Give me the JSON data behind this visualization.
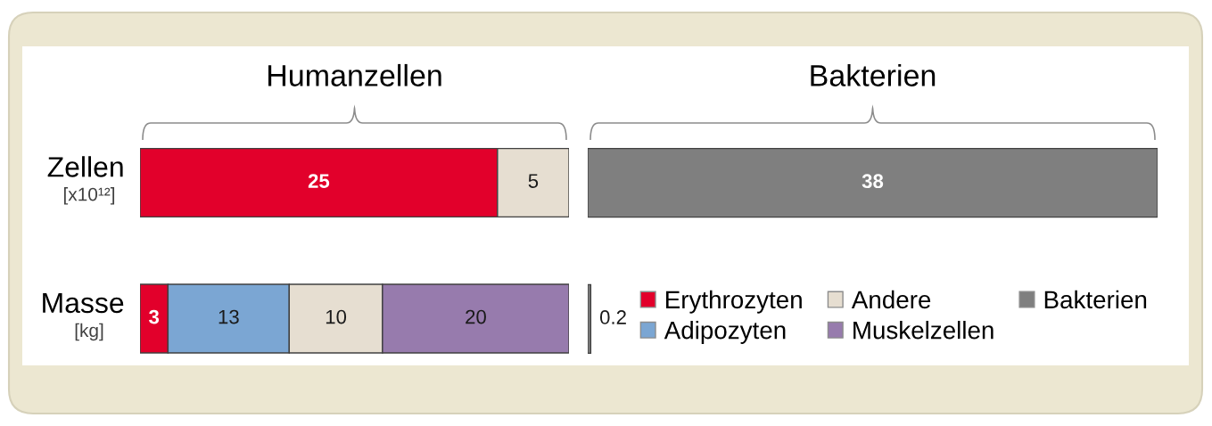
{
  "chart_data": [
    {
      "type": "bar",
      "orientation": "horizontal",
      "stacked": true,
      "title": "Humanzellen",
      "categories": [
        "Zellen"
      ],
      "xlabel": "[x10¹²]",
      "xlim": [
        0,
        30
      ],
      "tick_labels": "y",
      "data_labels": true,
      "legend": "bottom right",
      "series": [
        {
          "name": "Erythrozyten",
          "color": "#e2002b",
          "values": [
            25
          ]
        },
        {
          "name": "Andere",
          "color": "#e6ded1",
          "values": [
            5
          ]
        }
      ]
    },
    {
      "type": "bar",
      "orientation": "horizontal",
      "stacked": true,
      "title": "Bakterien",
      "categories": [
        null,
        null
      ],
      "xlim": [
        0,
        38
      ],
      "tick_labels": false,
      "data_labels": true,
      "legend": "bottom right",
      "series": [
        {
          "name": "Bakterien",
          "color": "#7f7f7f",
          "values": [
            38,
            0.2
          ]
        }
      ]
    },
    {
      "type": "bar",
      "orientation": "horizontal",
      "stacked": true,
      "categories": [
        "Masse"
      ],
      "xlabel": "[kg]",
      "xlim": [
        0,
        46
      ],
      "tick_labels": "y",
      "data_labels": true,
      "legend": "right",
      "series": [
        {
          "name": "Erythrozyten",
          "color": "#e2002b",
          "values": [
            3
          ]
        },
        {
          "name": "Adipozyten",
          "color": "#7ba6d3",
          "values": [
            13
          ]
        },
        {
          "name": "Andere",
          "color": "#e6ded1",
          "values": [
            10
          ]
        },
        {
          "name": "Muskelzellen",
          "color": "#977bad",
          "values": [
            20
          ]
        }
      ]
    }
  ]
}
